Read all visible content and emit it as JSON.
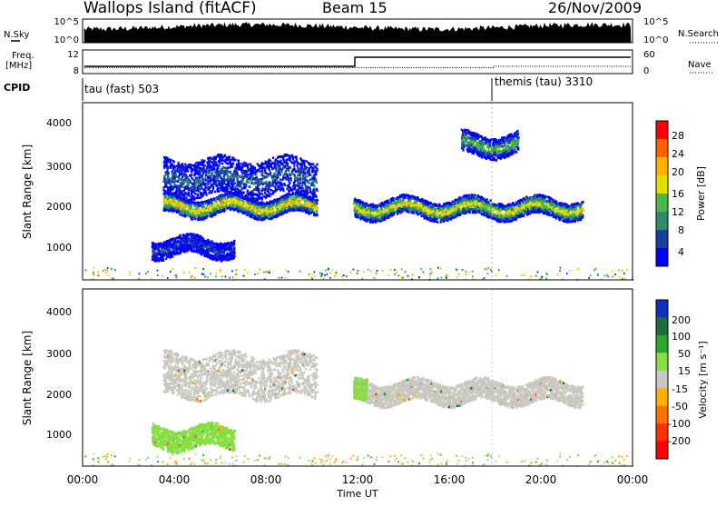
{
  "header": {
    "title": "Wallops Island (fitACF)",
    "beam": "Beam 15",
    "date": "26/Nov/2009"
  },
  "strips": {
    "nsky_label": "N.Sky",
    "nsky_ticks": [
      "10^5",
      "10^0"
    ],
    "nsearch_label": "N.Search",
    "nsearch_ticks": [
      "10^5",
      "10^0"
    ],
    "freq_label_top": "Freq.",
    "freq_label_bottom": "[MHz]",
    "freq_ticks": [
      "12",
      "8"
    ],
    "nave_label": "Nave",
    "nave_ticks": [
      "60",
      "0"
    ],
    "cpid_label": "CPID",
    "cpid_modes": [
      {
        "name": "tau (fast) 503",
        "start_hour": 0
      },
      {
        "name": "themis (tau) 3310",
        "start_hour": 18
      }
    ]
  },
  "axes": {
    "ylabel": "Slant Range [km]",
    "yticks": [
      "4000",
      "3000",
      "2000",
      "1000"
    ],
    "xticks": [
      "00:00",
      "04:00",
      "08:00",
      "12:00",
      "16:00",
      "20:00",
      "00:00"
    ],
    "xlabel": "Time UT"
  },
  "colorbars": {
    "power": {
      "label": "Power [dB]",
      "ticks": [
        "28",
        "24",
        "20",
        "16",
        "12",
        "8",
        "4"
      ],
      "colors": [
        "#ff0000",
        "#ff6000",
        "#ffb000",
        "#e0e000",
        "#48b848",
        "#2e8b6e",
        "#1a3fa0",
        "#0000ff"
      ]
    },
    "velocity": {
      "label": "Velocity [m s⁻¹]",
      "ticks": [
        "200",
        "100",
        "50",
        "15",
        "-15",
        "-50",
        "-100",
        "-200"
      ],
      "colors": [
        "#1030c0",
        "#1e6a3c",
        "#2aa82a",
        "#88dd44",
        "#c8c8c0",
        "#ffb000",
        "#ff7000",
        "#ff3000",
        "#ff0000"
      ]
    }
  },
  "chart_data": [
    {
      "type": "heatmap",
      "name": "Power",
      "x_range_hours": [
        0,
        24
      ],
      "y_range_km": [
        180,
        4500
      ],
      "colorbar_label": "Power [dB]",
      "colorbar_range": [
        0,
        32
      ],
      "features": [
        {
          "t_start": 3.5,
          "t_end": 10.2,
          "range_km": 2000,
          "peak_power_db": 26
        },
        {
          "t_start": 3.5,
          "t_end": 10.2,
          "range_km": 2700,
          "peak_power_db": 12
        },
        {
          "t_start": 11.8,
          "t_end": 21.8,
          "range_km": 1950,
          "peak_power_db": 24
        },
        {
          "t_start": 16.5,
          "t_end": 19.0,
          "range_km": 3500,
          "peak_power_db": 18
        },
        {
          "t_start": 3.0,
          "t_end": 6.6,
          "range_km": 1000,
          "peak_power_db": 10
        }
      ]
    },
    {
      "type": "heatmap",
      "name": "Velocity",
      "x_range_hours": [
        0,
        24
      ],
      "y_range_km": [
        180,
        4500
      ],
      "colorbar_label": "Velocity [m s⁻¹]",
      "colorbar_range": [
        -200,
        200
      ],
      "features": [
        {
          "t_start": 3.5,
          "t_end": 10.2,
          "range_km": 2400,
          "velocity": 0
        },
        {
          "t_start": 11.8,
          "t_end": 21.8,
          "range_km": 2000,
          "velocity": 0
        },
        {
          "t_start": 3.0,
          "t_end": 6.6,
          "range_km": 900,
          "velocity": 30
        },
        {
          "t_start": 11.8,
          "t_end": 12.4,
          "range_km": 2200,
          "velocity": 40
        }
      ]
    }
  ]
}
